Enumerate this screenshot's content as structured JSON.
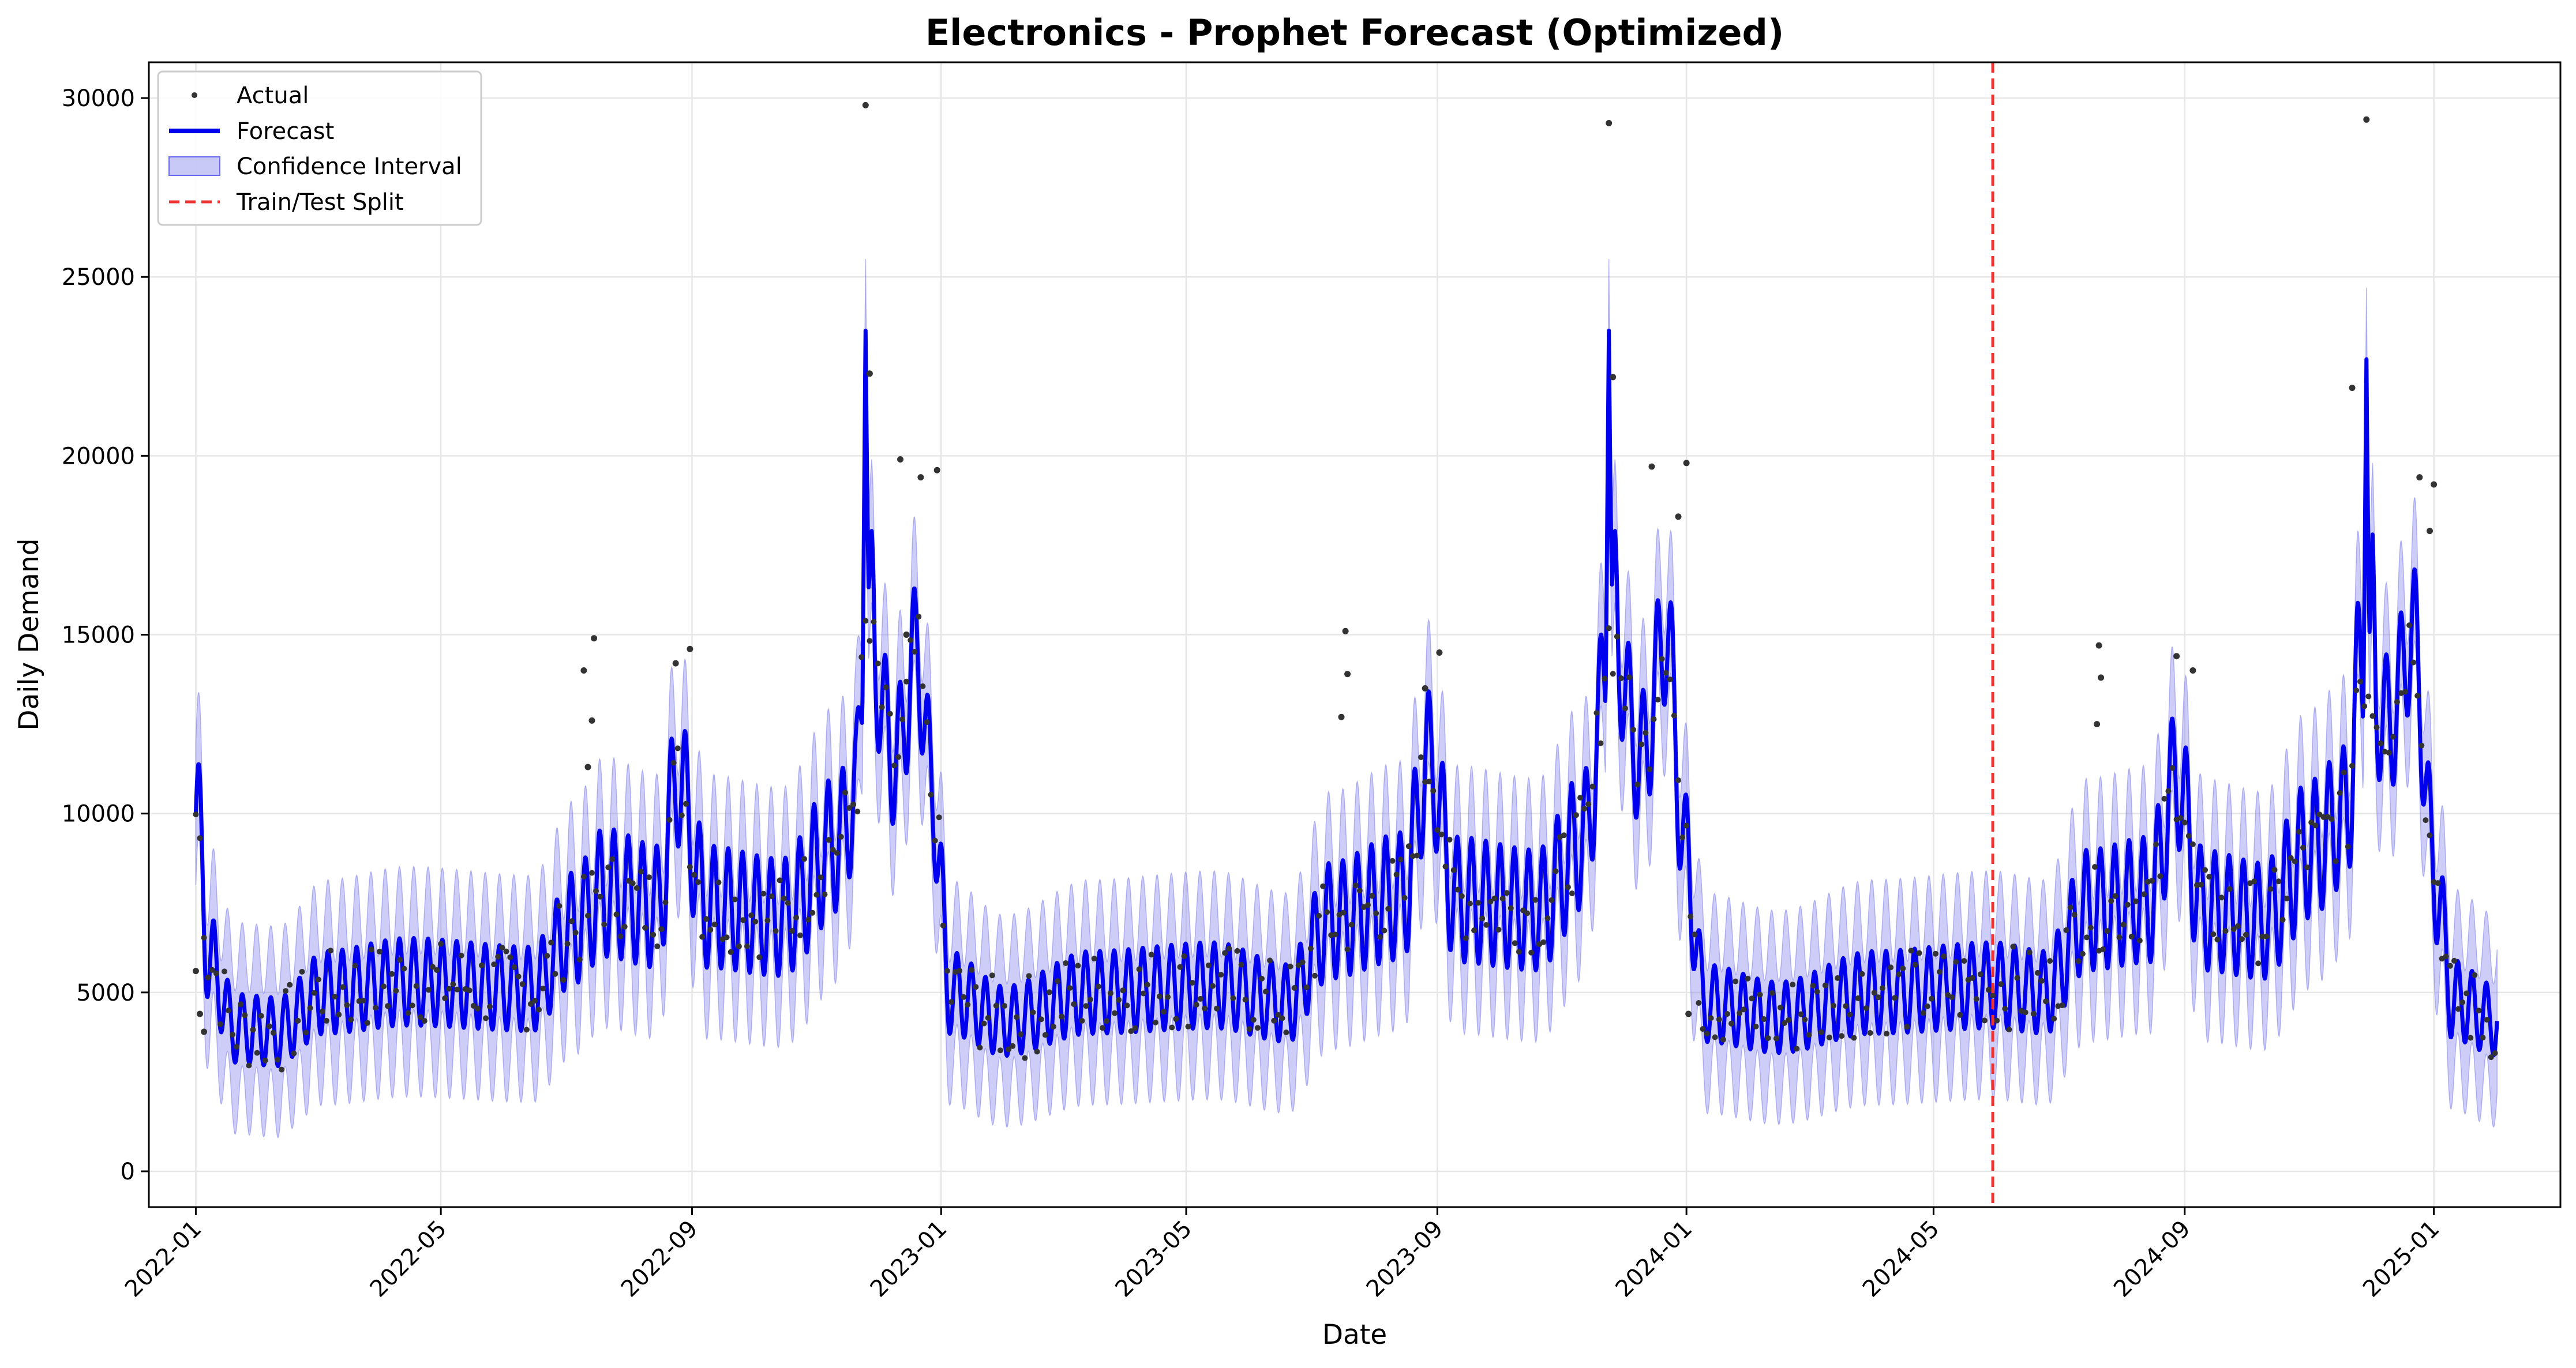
{
  "chart_data": {
    "type": "line",
    "title": "Electronics - Prophet Forecast (Optimized)",
    "xlabel": "Date",
    "ylabel": "Daily Demand",
    "x_range": [
      "2021-12-09",
      "2025-03-04"
    ],
    "ylim": [
      -1000,
      31000
    ],
    "x_ticks": [
      "2022-01",
      "2022-05",
      "2022-09",
      "2023-01",
      "2023-05",
      "2023-09",
      "2024-01",
      "2024-05",
      "2024-09",
      "2025-01"
    ],
    "y_ticks": [
      0,
      5000,
      10000,
      15000,
      20000,
      25000,
      30000
    ],
    "y_tick_labels": [
      "0",
      "5000",
      "10000",
      "15000",
      "20000",
      "25000",
      "30000"
    ],
    "grid": true,
    "legend": {
      "position": "top-left",
      "entries": [
        {
          "label": "Actual",
          "kind": "marker",
          "color": "#333333"
        },
        {
          "label": "Forecast",
          "kind": "line",
          "color": "#0000ee"
        },
        {
          "label": "Confidence Interval",
          "kind": "patch",
          "color": "#8888ee"
        },
        {
          "label": "Train/Test Split",
          "kind": "dashed-line",
          "color": "#ee3333"
        }
      ]
    },
    "split_date": "2024-05-30",
    "forecast": {
      "color": "#0000ee",
      "band_color": "#8888ee",
      "weekly_amplitude": 1200,
      "points": [
        [
          "2022-01-01",
          10000
        ],
        [
          "2022-01-08",
          5800
        ],
        [
          "2022-01-20",
          4000
        ],
        [
          "2022-02-10",
          3900
        ],
        [
          "2022-03-05",
          5000
        ],
        [
          "2022-04-15",
          5300
        ],
        [
          "2022-06-15",
          5100
        ],
        [
          "2022-07-05",
          6800
        ],
        [
          "2022-07-20",
          7800
        ],
        [
          "2022-08-15",
          7400
        ],
        [
          "2022-08-25",
          11000
        ],
        [
          "2022-09-08",
          7400
        ],
        [
          "2022-10-15",
          7100
        ],
        [
          "2022-11-12",
          9200
        ],
        [
          "2022-11-20",
          10500
        ],
        [
          "2022-11-25",
          15000
        ],
        [
          "2022-12-10",
          11500
        ],
        [
          "2022-12-20",
          14500
        ],
        [
          "2022-12-28",
          10500
        ],
        [
          "2023-01-05",
          5000
        ],
        [
          "2023-02-01",
          4200
        ],
        [
          "2023-03-15",
          5000
        ],
        [
          "2023-05-15",
          5200
        ],
        [
          "2023-06-20",
          4700
        ],
        [
          "2023-07-10",
          7000
        ],
        [
          "2023-08-15",
          7700
        ],
        [
          "2023-08-28",
          11500
        ],
        [
          "2023-09-10",
          7600
        ],
        [
          "2023-10-20",
          7300
        ],
        [
          "2023-11-12",
          9300
        ],
        [
          "2023-11-25",
          15000
        ],
        [
          "2023-12-10",
          11500
        ],
        [
          "2023-12-22",
          15000
        ],
        [
          "2024-01-01",
          8600
        ],
        [
          "2024-01-10",
          4700
        ],
        [
          "2024-02-15",
          4300
        ],
        [
          "2024-04-01",
          5000
        ],
        [
          "2024-05-30",
          5200
        ],
        [
          "2024-06-25",
          5000
        ],
        [
          "2024-07-15",
          7300
        ],
        [
          "2024-08-15",
          7600
        ],
        [
          "2024-08-28",
          11000
        ],
        [
          "2024-09-10",
          7300
        ],
        [
          "2024-10-10",
          7000
        ],
        [
          "2024-11-01",
          9000
        ],
        [
          "2024-11-20",
          10000
        ],
        [
          "2024-11-25",
          14000
        ],
        [
          "2024-12-10",
          12500
        ],
        [
          "2024-12-22",
          15000
        ],
        [
          "2025-01-01",
          8500
        ],
        [
          "2025-01-10",
          4800
        ],
        [
          "2025-02-01",
          4200
        ]
      ],
      "spikes": [
        {
          "date": "2022-11-25",
          "value": 23500
        },
        {
          "date": "2022-11-28",
          "value": 17900
        },
        {
          "date": "2023-11-24",
          "value": 23500
        },
        {
          "date": "2023-11-27",
          "value": 17900
        },
        {
          "date": "2024-11-29",
          "value": 22700
        },
        {
          "date": "2024-12-02",
          "value": 17800
        }
      ]
    },
    "actual_highlights": [
      {
        "date": "2022-01-01",
        "value": 5600
      },
      {
        "date": "2022-01-03",
        "value": 4400
      },
      {
        "date": "2022-01-05",
        "value": 3900
      },
      {
        "date": "2022-07-10",
        "value": 14000
      },
      {
        "date": "2022-07-15",
        "value": 14900
      },
      {
        "date": "2022-07-14",
        "value": 12600
      },
      {
        "date": "2022-07-12",
        "value": 11300
      },
      {
        "date": "2022-08-24",
        "value": 14200
      },
      {
        "date": "2022-08-31",
        "value": 14600
      },
      {
        "date": "2022-11-25",
        "value": 29800
      },
      {
        "date": "2022-11-27",
        "value": 22300
      },
      {
        "date": "2022-12-12",
        "value": 19900
      },
      {
        "date": "2022-12-22",
        "value": 19400
      },
      {
        "date": "2022-12-30",
        "value": 19600
      },
      {
        "date": "2022-12-15",
        "value": 15000
      },
      {
        "date": "2023-07-18",
        "value": 15100
      },
      {
        "date": "2023-07-19",
        "value": 13900
      },
      {
        "date": "2023-07-16",
        "value": 12700
      },
      {
        "date": "2023-08-26",
        "value": 13500
      },
      {
        "date": "2023-09-02",
        "value": 14500
      },
      {
        "date": "2023-11-24",
        "value": 29300
      },
      {
        "date": "2023-11-26",
        "value": 22200
      },
      {
        "date": "2023-12-15",
        "value": 19700
      },
      {
        "date": "2023-12-28",
        "value": 18300
      },
      {
        "date": "2024-01-01",
        "value": 19800
      },
      {
        "date": "2024-01-02",
        "value": 4400
      },
      {
        "date": "2024-07-21",
        "value": 14700
      },
      {
        "date": "2024-07-22",
        "value": 13800
      },
      {
        "date": "2024-07-20",
        "value": 12500
      },
      {
        "date": "2024-08-28",
        "value": 14400
      },
      {
        "date": "2024-09-05",
        "value": 14000
      },
      {
        "date": "2024-11-22",
        "value": 21900
      },
      {
        "date": "2024-11-29",
        "value": 29400
      },
      {
        "date": "2024-12-25",
        "value": 19400
      },
      {
        "date": "2025-01-01",
        "value": 19200
      },
      {
        "date": "2024-12-30",
        "value": 17900
      }
    ]
  }
}
